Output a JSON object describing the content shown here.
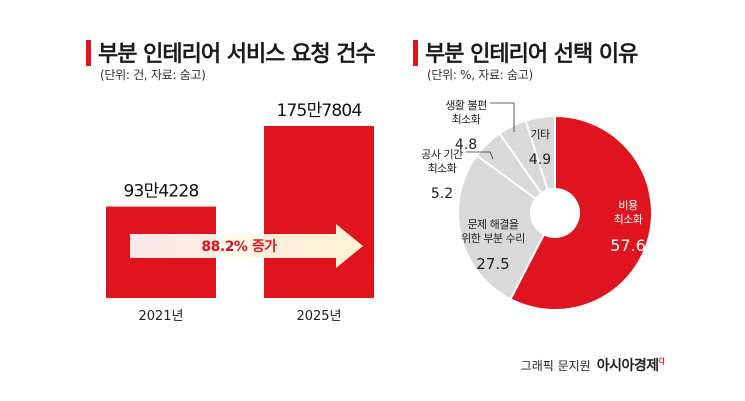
{
  "left_panel": {
    "title": "부분 인테리어 서비스 요청 건수",
    "subtitle": "(단위: 건, 자료: 숨고)"
  },
  "right_panel": {
    "title": "부분 인테리어 선택 이유",
    "subtitle": "(단위: %, 자료: 숨고)"
  },
  "credit": {
    "text": "그래픽 문지원",
    "brand": "아시아경제",
    "brand_mark": "q"
  },
  "colors": {
    "accent": "#e0141e",
    "bar": "#e0141e",
    "gray": "#d9d9d9",
    "arrow_start": "#ffffff",
    "arrow_end": "#fdf2d2"
  },
  "chart_data": [
    {
      "type": "bar",
      "categories": [
        "2021년",
        "2025년"
      ],
      "values": [
        934228,
        1757804
      ],
      "value_labels": [
        "93만4228",
        "175만7804"
      ],
      "annotation": "88.2% 증가"
    },
    {
      "type": "pie",
      "slices": [
        {
          "label_lines": [
            "비용",
            "최소화"
          ],
          "value": 57.6,
          "value_label": "57.6"
        },
        {
          "label_lines": [
            "문제 해결을",
            "위한 부분 수리"
          ],
          "value": 27.5,
          "value_label": "27.5"
        },
        {
          "label_lines": [
            "공사 기간",
            "최소화"
          ],
          "value": 5.2,
          "value_label": "5.2"
        },
        {
          "label_lines": [
            "생활 불편",
            "최소화"
          ],
          "value": 4.8,
          "value_label": "4.8"
        },
        {
          "label_lines": [
            "기타"
          ],
          "value": 4.9,
          "value_label": "4.9"
        }
      ]
    }
  ]
}
